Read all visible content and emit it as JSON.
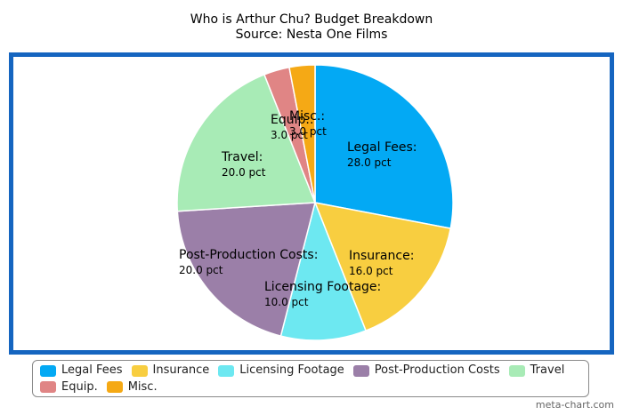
{
  "title": "Who is Arthur Chu? Budget Breakdown",
  "subtitle": "Source: Nesta One Films",
  "credit": "meta-chart.com",
  "colors": {
    "frame": "#1565c0",
    "legend_border": "#8a8a8a"
  },
  "chart_data": {
    "type": "pie",
    "title": "Who is Arthur Chu? Budget Breakdown",
    "subtitle": "Source: Nesta One Films",
    "unit": "pct",
    "legend_position": "bottom",
    "slices": [
      {
        "label": "Legal Fees",
        "value": 28.0,
        "value_text": "28.0 pct",
        "color": "#03a9f4"
      },
      {
        "label": "Insurance",
        "value": 16.0,
        "value_text": "16.0 pct",
        "color": "#f8ce40"
      },
      {
        "label": "Licensing Footage",
        "value": 10.0,
        "value_text": "10.0 pct",
        "color": "#6de8f1"
      },
      {
        "label": "Post-Production Costs",
        "value": 20.0,
        "value_text": "20.0 pct",
        "color": "#9b7fa8"
      },
      {
        "label": "Travel",
        "value": 20.0,
        "value_text": "20.0 pct",
        "color": "#a8ebb6"
      },
      {
        "label": "Equip.",
        "value": 3.0,
        "value_text": "3.0 pct",
        "color": "#e08585"
      },
      {
        "label": "Misc.",
        "value": 3.0,
        "value_text": "3.0 pct",
        "color": "#f5a915"
      }
    ]
  }
}
